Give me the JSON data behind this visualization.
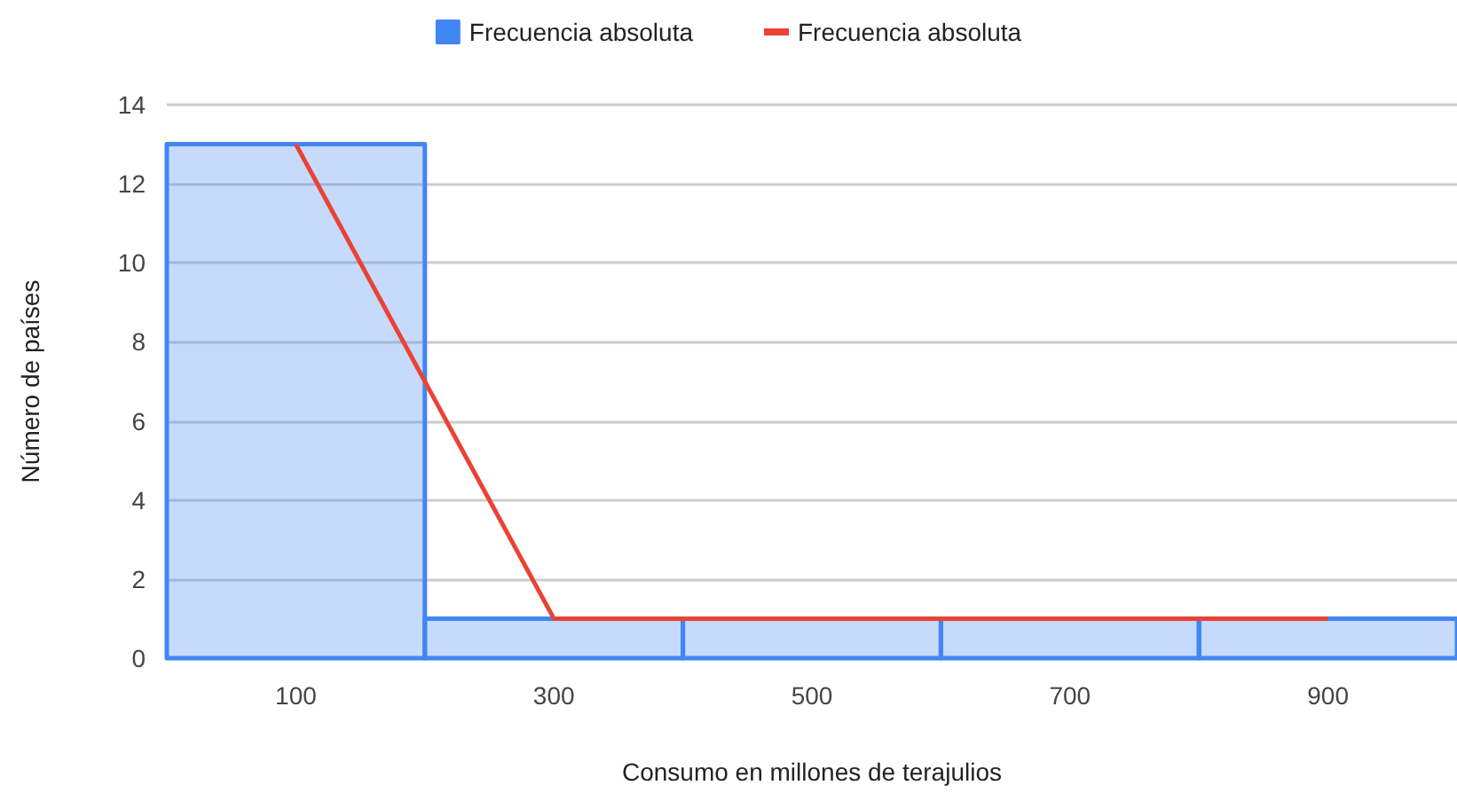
{
  "chart_data": {
    "type": "histogram",
    "xlabel": "Consumo en millones de terajulios",
    "ylabel": "Número de países",
    "series": [
      {
        "name": "Frecuencia absoluta",
        "color": "#4285f4",
        "bins": [
          0,
          200,
          400,
          600,
          800,
          1000
        ],
        "values": [
          13,
          1,
          1,
          1,
          1
        ]
      },
      {
        "type": "line",
        "name": "Frecuencia absoluta",
        "color": "#ea4335",
        "x": [
          100,
          300,
          500,
          700,
          900
        ],
        "values": [
          13,
          1,
          1,
          1,
          1
        ]
      }
    ],
    "xlim": [
      0,
      1000
    ],
    "xticks": [
      100,
      300,
      500,
      700,
      900
    ],
    "ylim": [
      0,
      14
    ],
    "yticks": [
      0,
      2,
      4,
      6,
      8,
      10,
      12,
      14
    ],
    "grid": "y",
    "legend": "top",
    "marker": "none"
  }
}
